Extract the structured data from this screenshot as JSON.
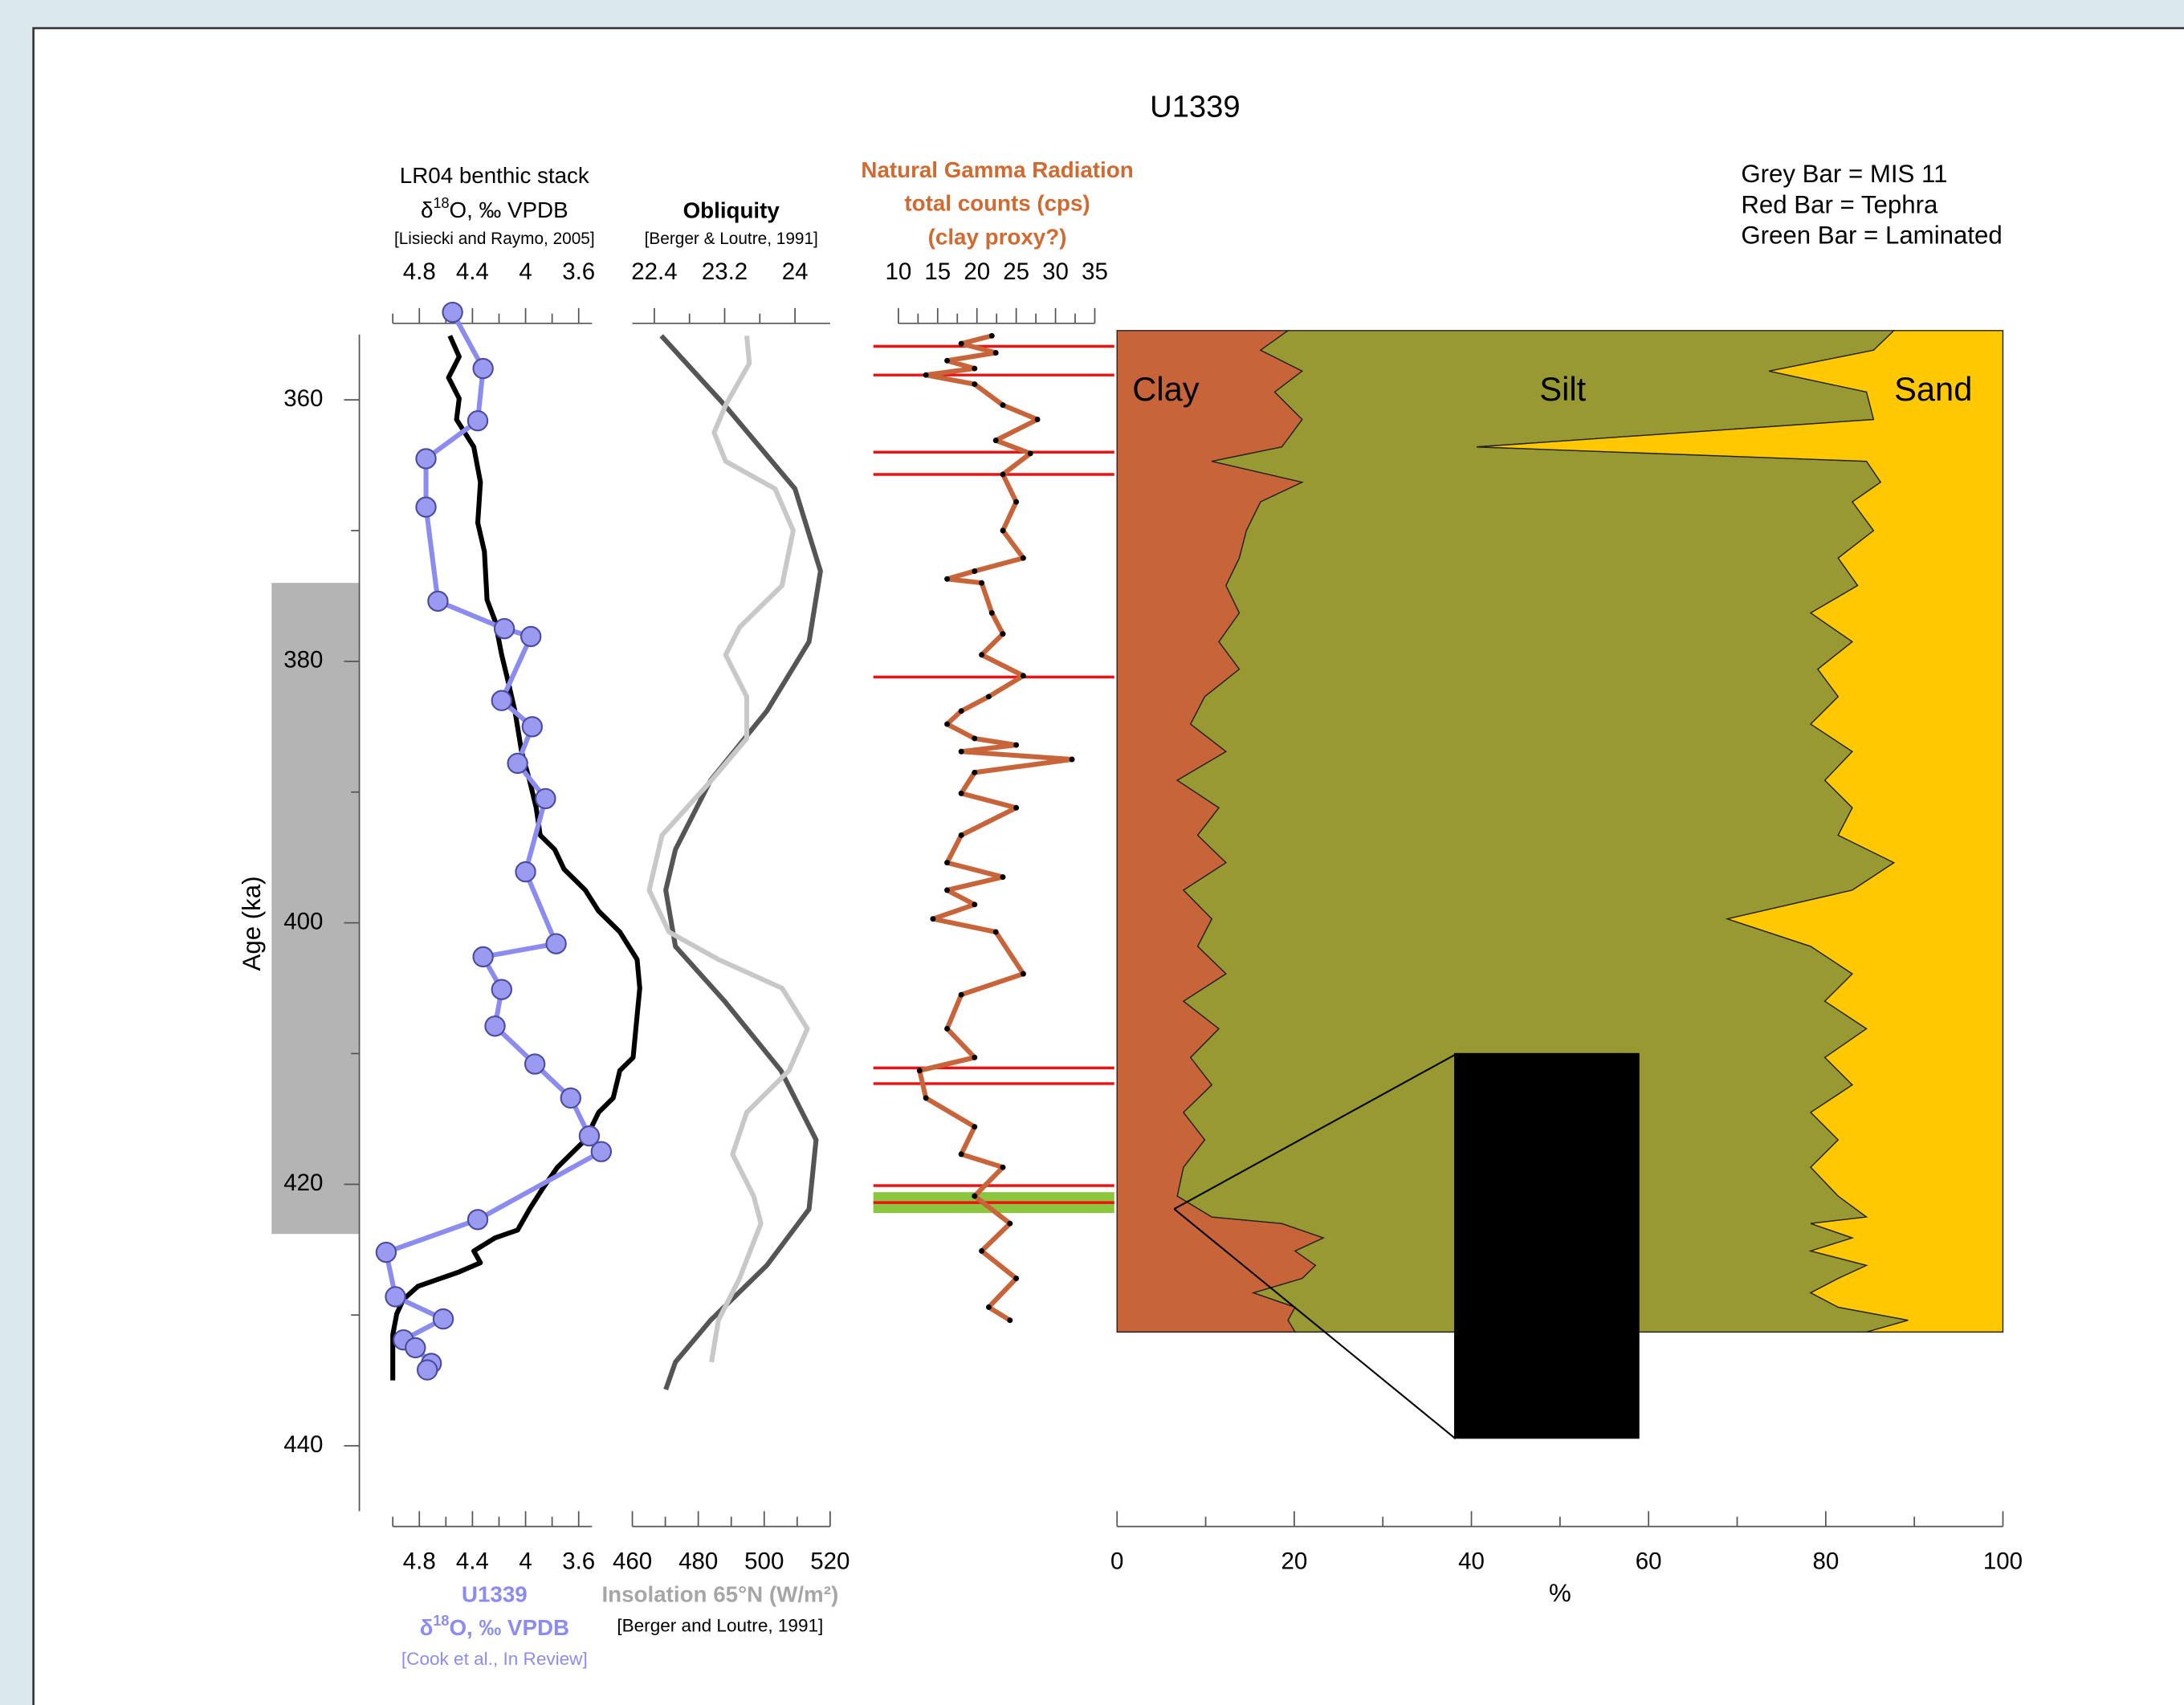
{
  "title": "U1339",
  "notes": [
    "Grey Bar = MIS 11",
    "Red Bar = Tephra",
    "Green Bar = Laminated"
  ],
  "chart_data": [
    {
      "type": "line",
      "y_label": "Age (ka)",
      "ylim": [
        355,
        445
      ],
      "yticks": [
        360,
        380,
        400,
        420,
        440
      ],
      "yminor": [
        370,
        390,
        410,
        430
      ],
      "band": {
        "range": [
          374.0,
          423.8
        ],
        "color": "#b4b4b4"
      },
      "top_label": [
        "LR04 benthic stack",
        {
          "parts": [
            "δ",
            "18",
            "O, ‰ VPDB"
          ]
        },
        "[Lisiecki and Raymo, 2005]"
      ],
      "bottom_label": [
        "U1339",
        {
          "parts": [
            "δ",
            "18",
            "O, ‰ VPDB"
          ]
        },
        "[Cook et al., In Review]"
      ],
      "bottom_label_color": "#8c8cf0",
      "xlim": [
        5.0,
        3.5
      ],
      "xticks": [
        4.8,
        4.4,
        4,
        3.6
      ],
      "xminor": [
        5.0,
        4.6,
        4.2,
        3.8
      ],
      "x2lim": [
        5.0,
        3.5
      ],
      "x2ticks": [
        4.8,
        4.4,
        4,
        3.6
      ],
      "x2minor": [
        5.0,
        4.6,
        4.2,
        3.8
      ],
      "series": [
        {
          "color": "#000000",
          "axis": "x",
          "ages": [
            355.1,
            356.7,
            358.3,
            359.9,
            361.5,
            363.6,
            366.3,
            369.4,
            371.6,
            375.3,
            376.9,
            379.5,
            381.6,
            383.8,
            386.9,
            389.1,
            391.2,
            393.3,
            394.4,
            395.9,
            397.5,
            399.1,
            400.7,
            402.8,
            405.0,
            407.1,
            410.3,
            411.3,
            413.4,
            414.5,
            416.6,
            418.7,
            420.3,
            421.9,
            423.5,
            424.1,
            425.1,
            426.0,
            426.7,
            427.8,
            428.8,
            429.9,
            431.5,
            435.0
          ],
          "values": [
            4.57,
            4.5,
            4.58,
            4.5,
            4.52,
            4.39,
            4.34,
            4.36,
            4.31,
            4.29,
            4.23,
            4.18,
            4.13,
            4.08,
            4.03,
            3.97,
            3.92,
            3.89,
            3.78,
            3.71,
            3.55,
            3.45,
            3.29,
            3.16,
            3.14,
            3.16,
            3.19,
            3.29,
            3.34,
            3.45,
            3.55,
            3.76,
            3.87,
            3.97,
            4.06,
            4.23,
            4.39,
            4.34,
            4.5,
            4.81,
            4.92,
            4.97,
            5.0,
            5.0
          ]
        },
        {
          "color": "#8c8cf0",
          "axis": "x2",
          "marker": "circle",
          "marker_color": "#9a9af0",
          "ages": [
            353.3,
            357.6,
            361.6,
            364.5,
            368.2,
            375.4,
            377.5,
            378.1,
            383.0,
            385.0,
            387.8,
            390.5,
            396.1,
            401.6,
            402.6,
            405.1,
            407.9,
            410.8,
            413.4,
            416.3,
            417.5,
            422.7,
            425.2,
            428.6,
            430.3,
            431.9,
            432.5,
            433.7,
            434.2
          ],
          "values": [
            4.55,
            4.32,
            4.36,
            4.75,
            4.75,
            4.66,
            4.16,
            3.96,
            4.18,
            3.95,
            4.06,
            3.85,
            4.0,
            3.77,
            4.32,
            4.18,
            4.23,
            3.93,
            3.66,
            3.52,
            3.43,
            4.36,
            5.05,
            4.98,
            4.62,
            4.92,
            4.83,
            4.71,
            4.74
          ]
        }
      ]
    },
    {
      "type": "line",
      "top_label": [
        "Obliquity",
        "[Berger & Loutre, 1991]"
      ],
      "bottom_label": [
        "Insolation 65°N (W/m²)",
        "[Berger and Loutre, 1991]"
      ],
      "bottom_label_color": "#a6a6a6",
      "xlim": [
        22.15,
        24.4
      ],
      "xticks": [
        22.4,
        23.2,
        24
      ],
      "xminor": [
        22.8,
        23.6
      ],
      "x2lim": [
        460,
        520
      ],
      "x2ticks": [
        460,
        480,
        500,
        520
      ],
      "x2minor": [
        470,
        490,
        510
      ],
      "series": [
        {
          "color": "#555555",
          "axis": "x",
          "ages": [
            355.1,
            360.4,
            366.8,
            373.1,
            378.5,
            383.8,
            389.1,
            394.4,
            397.5,
            401.8,
            406.0,
            411.3,
            416.6,
            421.9,
            426.2,
            430.4,
            433.6,
            435.7
          ],
          "values": [
            22.48,
            23.2,
            24.0,
            24.29,
            24.16,
            23.68,
            23.04,
            22.64,
            22.53,
            22.64,
            23.2,
            23.84,
            24.24,
            24.16,
            23.68,
            23.04,
            22.64,
            22.53
          ]
        },
        {
          "color": "#c8c8c8",
          "axis": "x2",
          "ages": [
            355.1,
            357.2,
            360.4,
            362.5,
            364.7,
            366.8,
            370.0,
            374.2,
            377.4,
            379.5,
            382.7,
            385.9,
            389.1,
            393.3,
            397.5,
            400.7,
            402.8,
            405.0,
            408.1,
            411.3,
            414.5,
            417.7,
            420.9,
            423.0,
            427.2,
            430.4,
            433.6
          ],
          "values": [
            494.7,
            495.5,
            488.3,
            484.8,
            488.3,
            503.3,
            508.8,
            505.4,
            492.5,
            488.3,
            494.7,
            494.7,
            484.0,
            469.0,
            465.1,
            471.1,
            486.1,
            505.4,
            513.1,
            507.5,
            494.7,
            490.4,
            496.8,
            499.0,
            492.5,
            486.1,
            484.0
          ]
        }
      ]
    },
    {
      "type": "line",
      "top_label": [
        "Natural Gamma Radiation",
        "total counts (cps)",
        "(clay proxy?)"
      ],
      "top_label_color": "#d06a30",
      "xlim": [
        10,
        35
      ],
      "xticks": [
        10,
        15,
        20,
        25,
        30,
        35
      ],
      "xminor": [
        12.5,
        17.5,
        22.5,
        27.5,
        32.5
      ],
      "tephra": [
        355.9,
        358.1,
        364.0,
        365.7,
        381.2,
        411.1,
        412.3,
        420.1,
        421.4
      ],
      "tephra_color": "#ee1111",
      "laminated": [
        420.6,
        422.2
      ],
      "laminated_color": "#8cc63f",
      "series": [
        {
          "color": "#c8643a",
          "axis": "x",
          "marker": "dot",
          "marker_color": "#000000",
          "ages": [
            355.1,
            355.7,
            356.4,
            357.0,
            357.6,
            358.1,
            358.8,
            360.4,
            361.5,
            363.1,
            364.1,
            365.7,
            367.8,
            370.0,
            372.1,
            373.1,
            373.7,
            374.0,
            376.3,
            377.9,
            379.5,
            381.1,
            382.7,
            383.8,
            384.8,
            385.9,
            386.4,
            386.9,
            387.5,
            388.5,
            390.1,
            391.2,
            393.3,
            395.4,
            396.5,
            397.5,
            398.6,
            399.7,
            400.7,
            403.9,
            405.5,
            408.1,
            410.3,
            411.3,
            413.4,
            415.6,
            417.7,
            418.7,
            420.9,
            423.0,
            425.1,
            427.2,
            429.4,
            430.4
          ],
          "values": [
            21.9,
            18.0,
            22.4,
            16.2,
            19.7,
            13.5,
            19.7,
            23.3,
            27.7,
            22.4,
            26.8,
            23.3,
            25.0,
            23.3,
            25.9,
            19.7,
            16.2,
            20.6,
            21.9,
            23.3,
            20.6,
            25.9,
            21.5,
            18.0,
            16.2,
            19.7,
            25.0,
            18.0,
            32.1,
            19.7,
            18.0,
            25.0,
            18.0,
            16.2,
            23.3,
            16.2,
            19.7,
            14.4,
            22.4,
            25.9,
            18.0,
            16.2,
            19.7,
            12.7,
            13.5,
            19.7,
            18.0,
            23.3,
            19.7,
            24.2,
            20.6,
            25.0,
            21.5,
            24.2
          ]
        }
      ]
    },
    {
      "type": "area",
      "x_label": "%",
      "xlim": [
        0,
        100
      ],
      "xticks": [
        0,
        20,
        40,
        60,
        80,
        100
      ],
      "xminor": [
        10,
        30,
        50,
        70,
        90
      ],
      "ages": [
        354.7,
        356.2,
        357.8,
        359.4,
        361.5,
        363.6,
        364.7,
        366.3,
        367.8,
        370.0,
        372.1,
        374.2,
        376.3,
        378.5,
        380.6,
        382.7,
        384.8,
        386.9,
        389.1,
        391.2,
        393.3,
        395.4,
        397.5,
        399.7,
        401.8,
        403.9,
        406.0,
        408.1,
        410.3,
        412.4,
        414.5,
        416.6,
        418.7,
        420.9,
        422.5,
        423.0,
        424.1,
        425.1,
        426.2,
        427.2,
        428.3,
        429.4,
        430.4,
        431.3
      ],
      "series": [
        {
          "name": "Clay",
          "color": "#c8643a",
          "values": [
            19.3,
            16.2,
            20.9,
            17.8,
            20.9,
            18.6,
            10.7,
            20.9,
            16.2,
            14.6,
            13.8,
            12.3,
            13.8,
            11.5,
            13.8,
            9.9,
            8.3,
            12.3,
            6.8,
            11.5,
            9.1,
            12.3,
            7.5,
            10.7,
            9.1,
            12.3,
            7.5,
            11.5,
            8.3,
            10.7,
            7.5,
            9.9,
            7.5,
            6.8,
            10.7,
            18.6,
            23.3,
            20.1,
            22.4,
            20.9,
            15.4,
            20.1,
            19.3,
            20.1
          ]
        },
        {
          "name": "Silt",
          "color": "#999933",
          "values": [
            68.4,
            69.2,
            52.7,
            66.8,
            64.5,
            22.0,
            73.9,
            65.3,
            66.8,
            70.8,
            67.6,
            71.3,
            64.5,
            71.5,
            65.3,
            71.5,
            70.0,
            70.7,
            73.1,
            71.5,
            72.3,
            75.4,
            75.5,
            58.2,
            69.2,
            70.7,
            72.4,
            73.1,
            71.6,
            72.3,
            70.8,
            71.5,
            70.8,
            74.6,
            73.9,
            59.7,
            59.7,
            58.2,
            62.2,
            60.5,
            62.9,
            61.3,
            70.0,
            64.5
          ]
        },
        {
          "name": "Sand",
          "color": "#ffc800",
          "values": [
            12.3,
            14.6,
            26.4,
            15.4,
            14.6,
            59.4,
            15.4,
            13.8,
            17.0,
            14.6,
            18.6,
            16.4,
            21.7,
            17.0,
            20.9,
            18.6,
            21.7,
            17.0,
            20.1,
            17.0,
            18.6,
            12.3,
            17.0,
            31.1,
            21.7,
            17.0,
            20.1,
            15.4,
            20.1,
            17.0,
            21.7,
            18.6,
            21.7,
            18.6,
            15.4,
            21.7,
            17.0,
            21.7,
            15.4,
            18.6,
            21.7,
            18.6,
            10.7,
            15.4
          ]
        }
      ]
    }
  ]
}
